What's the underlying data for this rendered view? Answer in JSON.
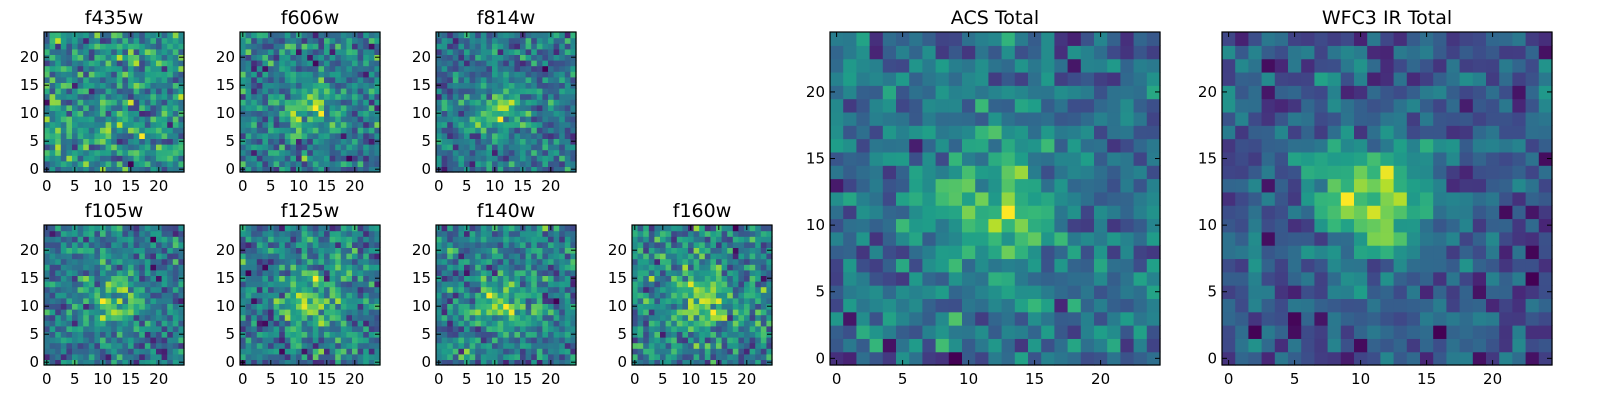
{
  "chart_data": [
    {
      "type": "heatmap",
      "title": "f435w",
      "xticks": [
        "0",
        "5",
        "10",
        "15",
        "20"
      ],
      "yticks": [
        "0",
        "5",
        "10",
        "15",
        "20"
      ],
      "xlim": [
        -0.5,
        24.5
      ],
      "ylim": [
        -0.5,
        24.5
      ],
      "grid_size": [
        25,
        25
      ],
      "colormap": "viridis",
      "source_peak": null,
      "noise_level": 0.28,
      "seed": 11
    },
    {
      "type": "heatmap",
      "title": "f606w",
      "xticks": [
        "0",
        "5",
        "10",
        "15",
        "20"
      ],
      "yticks": [
        "0",
        "5",
        "10",
        "15",
        "20"
      ],
      "xlim": [
        -0.5,
        24.5
      ],
      "ylim": [
        -0.5,
        24.5
      ],
      "grid_size": [
        25,
        25
      ],
      "colormap": "viridis",
      "source_peak": [
        12,
        11
      ],
      "noise_level": 0.27,
      "seed": 23
    },
    {
      "type": "heatmap",
      "title": "f814w",
      "xticks": [
        "0",
        "5",
        "10",
        "15",
        "20"
      ],
      "yticks": [
        "0",
        "5",
        "10",
        "15",
        "20"
      ],
      "xlim": [
        -0.5,
        24.5
      ],
      "ylim": [
        -0.5,
        24.5
      ],
      "grid_size": [
        25,
        25
      ],
      "colormap": "viridis",
      "source_peak": [
        11,
        11
      ],
      "noise_level": 0.24,
      "seed": 37
    },
    {
      "type": "heatmap",
      "title": "f105w",
      "xticks": [
        "0",
        "5",
        "10",
        "15",
        "20"
      ],
      "yticks": [
        "0",
        "5",
        "10",
        "15",
        "20"
      ],
      "xlim": [
        -0.5,
        24.5
      ],
      "ylim": [
        -0.5,
        24.5
      ],
      "grid_size": [
        25,
        25
      ],
      "colormap": "viridis",
      "source_peak": [
        12,
        11
      ],
      "noise_level": 0.22,
      "seed": 41
    },
    {
      "type": "heatmap",
      "title": "f125w",
      "xticks": [
        "0",
        "5",
        "10",
        "15",
        "20"
      ],
      "yticks": [
        "0",
        "5",
        "10",
        "15",
        "20"
      ],
      "xlim": [
        -0.5,
        24.5
      ],
      "ylim": [
        -0.5,
        24.5
      ],
      "grid_size": [
        25,
        25
      ],
      "colormap": "viridis",
      "source_peak": [
        12,
        11
      ],
      "noise_level": 0.21,
      "seed": 53
    },
    {
      "type": "heatmap",
      "title": "f140w",
      "xticks": [
        "0",
        "5",
        "10",
        "15",
        "20"
      ],
      "yticks": [
        "0",
        "5",
        "10",
        "15",
        "20"
      ],
      "xlim": [
        -0.5,
        24.5
      ],
      "ylim": [
        -0.5,
        24.5
      ],
      "grid_size": [
        25,
        25
      ],
      "colormap": "viridis",
      "source_peak": [
        11,
        11
      ],
      "noise_level": 0.22,
      "seed": 67
    },
    {
      "type": "heatmap",
      "title": "f160w",
      "xticks": [
        "0",
        "5",
        "10",
        "15",
        "20"
      ],
      "yticks": [
        "0",
        "5",
        "10",
        "15",
        "20"
      ],
      "xlim": [
        -0.5,
        24.5
      ],
      "ylim": [
        -0.5,
        24.5
      ],
      "grid_size": [
        25,
        25
      ],
      "colormap": "viridis",
      "source_peak": [
        12,
        11
      ],
      "noise_level": 0.24,
      "seed": 79
    },
    {
      "type": "heatmap",
      "title": "ACS Total",
      "xticks": [
        "0",
        "5",
        "10",
        "15",
        "20"
      ],
      "yticks": [
        "0",
        "5",
        "10",
        "15",
        "20"
      ],
      "xlim": [
        -0.5,
        24.5
      ],
      "ylim": [
        -0.5,
        24.5
      ],
      "grid_size": [
        25,
        25
      ],
      "colormap": "viridis",
      "source_peak": [
        12,
        11
      ],
      "noise_level": 0.16,
      "seed": 97
    },
    {
      "type": "heatmap",
      "title": "WFC3 IR Total",
      "xticks": [
        "0",
        "5",
        "10",
        "15",
        "20"
      ],
      "yticks": [
        "0",
        "5",
        "10",
        "15",
        "20"
      ],
      "xlim": [
        -0.5,
        24.5
      ],
      "ylim": [
        -0.5,
        24.5
      ],
      "grid_size": [
        25,
        25
      ],
      "colormap": "viridis",
      "source_peak": [
        11,
        12
      ],
      "noise_level": 0.1,
      "seed": 131
    }
  ]
}
